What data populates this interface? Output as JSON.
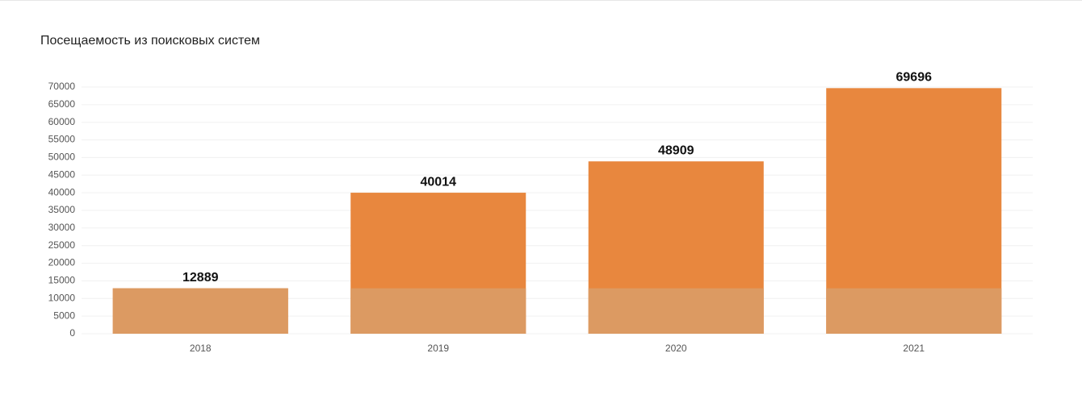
{
  "chart_data": {
    "type": "bar",
    "title": "Посещаемость из поисковых систем",
    "categories": [
      "2018",
      "2019",
      "2020",
      "2021"
    ],
    "values": [
      12889,
      40014,
      48909,
      69696
    ],
    "color": "#e8873e",
    "base_color": "#dc9a62",
    "ylim": [
      0,
      70000
    ],
    "yticks": [
      0,
      5000,
      10000,
      15000,
      20000,
      25000,
      30000,
      35000,
      40000,
      45000,
      50000,
      55000,
      60000,
      65000,
      70000
    ],
    "grid": true
  }
}
